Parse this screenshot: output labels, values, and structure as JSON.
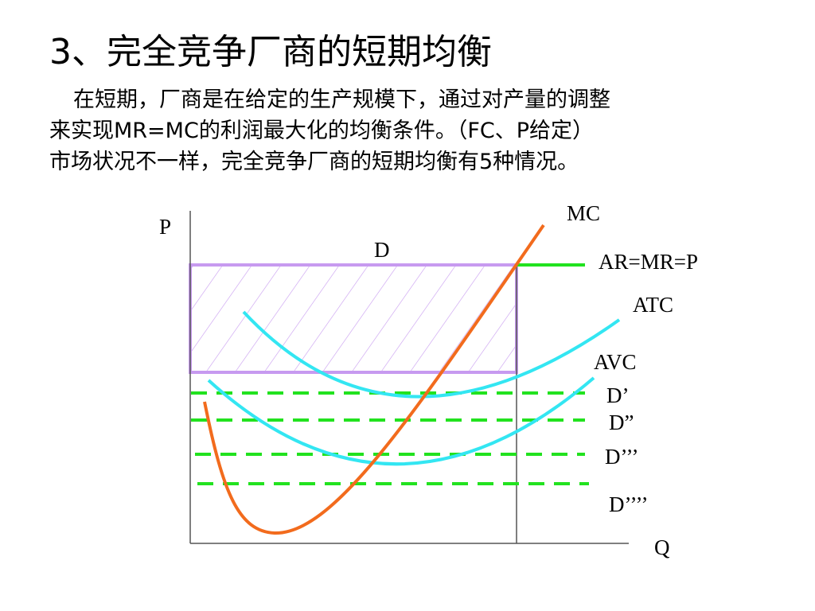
{
  "title": "3、完全竞争厂商的短期均衡",
  "body": {
    "line1": "在短期，厂商是在给定的生产规模下，通过对产量的调整",
    "line2": "来实现MR=MC的利润最大化的均衡条件。（FC、P给定）",
    "line3": "市场状况不一样，完全竞争厂商的短期均衡有5种情况。"
  },
  "diagram": {
    "axis_y_label": "P",
    "axis_x_label": "Q",
    "curves": {
      "mc": "MC",
      "atc": "ATC",
      "avc": "AVC"
    },
    "demand_lines": {
      "d": "D",
      "ar_mr_p": "AR=MR=P",
      "d1": "D’",
      "d2": "D”",
      "d3": "D’’’",
      "d4": "D’’’’"
    },
    "colors": {
      "mc": "#f26b1d",
      "cost_curves": "#33e6f2",
      "demand": "#22e21f",
      "profit_rect": "#c79af0",
      "axes": "#555555"
    }
  }
}
